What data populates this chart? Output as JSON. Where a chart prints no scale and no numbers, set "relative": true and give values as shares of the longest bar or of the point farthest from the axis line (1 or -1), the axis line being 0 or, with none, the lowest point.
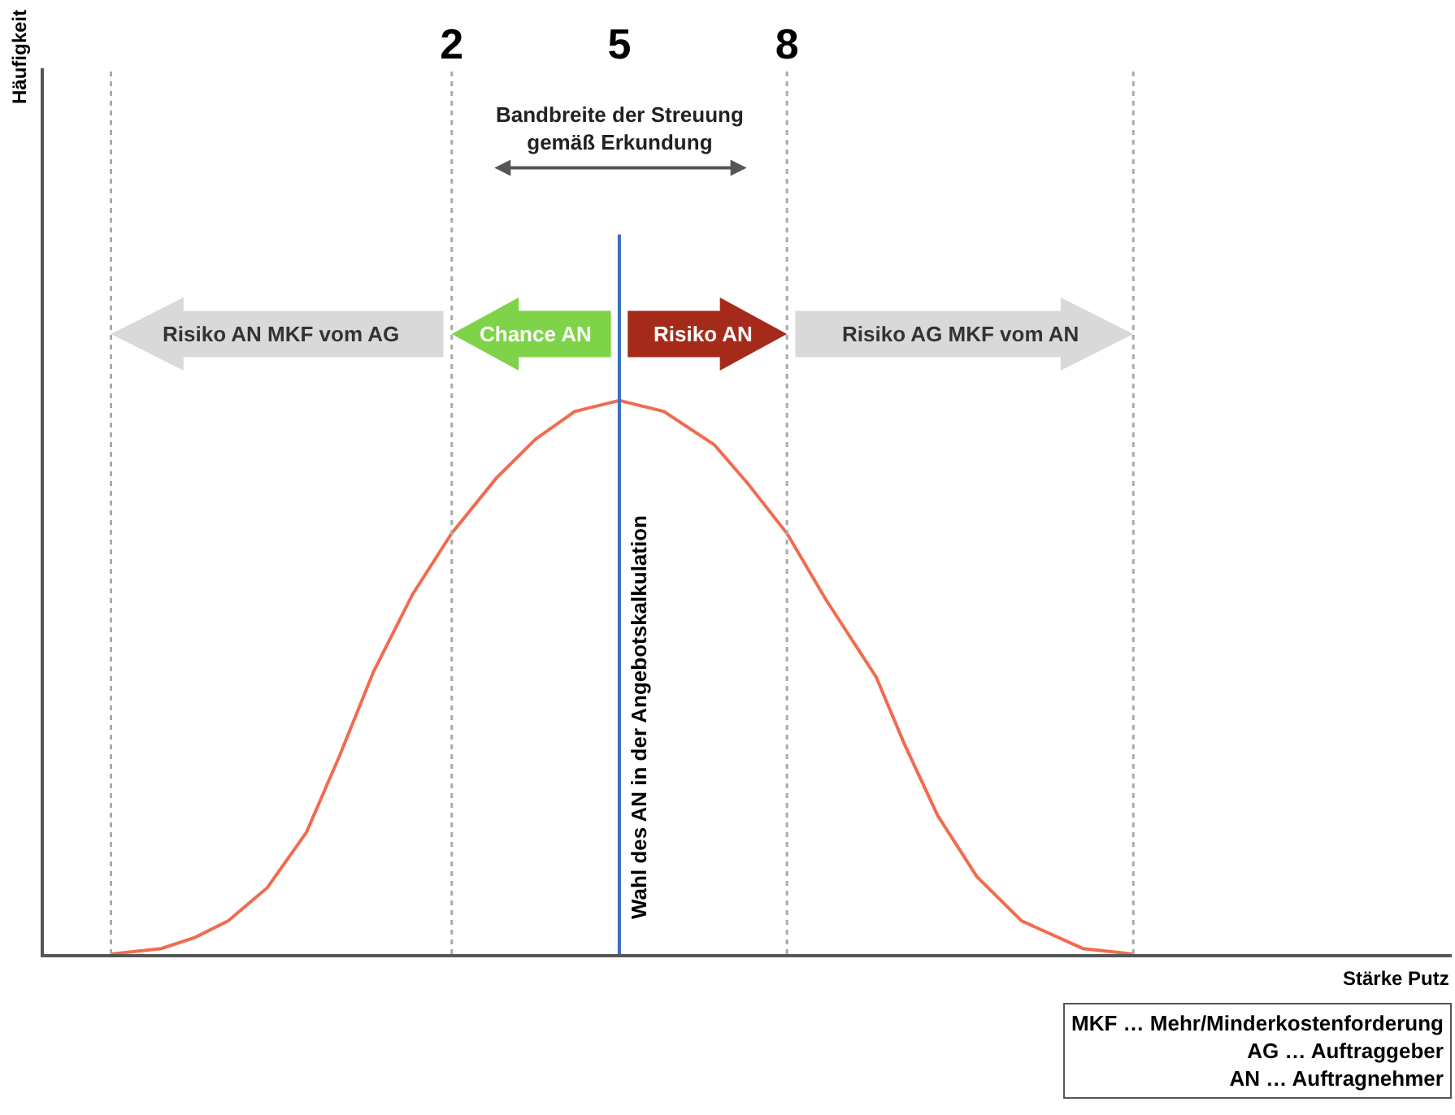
{
  "chart_data": {
    "type": "line",
    "relative": true,
    "xlabel": "Stärke Putz",
    "ylabel": "Häufigkeit",
    "x": [
      -4.1,
      -3.2,
      -2.6,
      -2.0,
      -1.3,
      -0.6,
      0.0,
      0.6,
      1.3,
      2.0,
      2.8,
      3.5,
      4.2,
      5.0,
      5.8,
      6.7,
      7.3,
      8.0,
      8.7,
      9.6,
      10.1,
      10.7,
      11.4,
      12.2,
      13.3,
      14.2
    ],
    "series": [
      {
        "color": "#f26b50",
        "values": [
          0,
          0.01,
          0.03,
          0.06,
          0.12,
          0.22,
          0.36,
          0.51,
          0.65,
          0.76,
          0.86,
          0.93,
          0.98,
          1,
          0.98,
          0.92,
          0.85,
          0.76,
          0.64,
          0.5,
          0.38,
          0.25,
          0.14,
          0.06,
          0.01,
          0
        ]
      }
    ],
    "xlim": [
      -5.3,
      19.9
    ],
    "xticks": [
      2,
      5,
      8
    ],
    "tick_labels": "x",
    "marker": "none",
    "line_style": "solid",
    "ref_lines": [
      {
        "axis": "x",
        "value": -4.1,
        "label": null,
        "color": "#aaaaaa",
        "line_style": "dotted"
      },
      {
        "axis": "x",
        "value": 2,
        "label": null,
        "color": "#aaaaaa",
        "line_style": "dotted"
      },
      {
        "axis": "x",
        "value": 8,
        "label": null,
        "color": "#aaaaaa",
        "line_style": "dotted"
      },
      {
        "axis": "x",
        "value": 14.2,
        "label": null,
        "color": "#aaaaaa",
        "line_style": "dotted"
      },
      {
        "axis": "x",
        "value": 5,
        "label": "Wahl des AN in der Angebotskalkulation",
        "color": "#3a6fc4",
        "line_style": "solid"
      }
    ],
    "annotations": [
      "Risiko AN MKF vom AG",
      "Chance AN",
      "Risiko AN",
      "Risiko AG MKF vom AN",
      "Bandbreite der Streuung\ngemäß Erkundung",
      "MKF … Mehr/Minderkostenforderung",
      "AG … Auftraggeber",
      "AN … Auftragnehmer"
    ]
  }
}
